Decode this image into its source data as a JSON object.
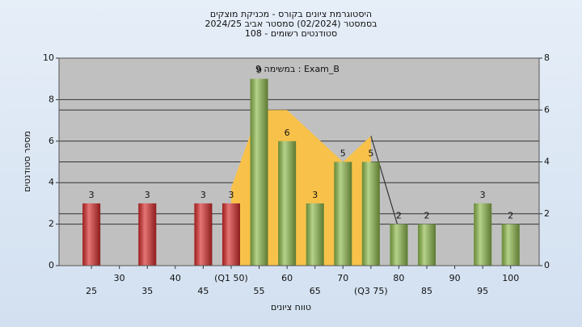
{
  "chart_data": {
    "type": "bar",
    "title": [
      "היסטוגרמת ציונים בקורס - מכניקת מוצקים",
      "בסמסטר (02/2024) סמסטר אביב 2024/25",
      "סטודנטים רשומים - 108"
    ],
    "annotation": "Exam_B : במשימה 9",
    "x_label": "טווח ציונים",
    "y_label": "מספר סטודנטים",
    "xlim": [
      19.2,
      105.1
    ],
    "xticks": [
      25,
      30,
      35,
      40,
      45,
      {
        "value": 50,
        "label": "(Q1 50)"
      },
      55,
      60,
      65,
      70,
      {
        "value": 75,
        "label": "(Q3 75)"
      },
      80,
      85,
      90,
      95,
      100
    ],
    "ylim": [
      0,
      10
    ],
    "yticks": [
      0,
      2,
      4,
      6,
      8,
      10
    ],
    "y2lim": [
      0,
      8
    ],
    "y2ticks": [
      0,
      2,
      4,
      6,
      8
    ],
    "grid": true,
    "series": [
      {
        "type": "area",
        "axis": "y2",
        "color": "#f8c24a",
        "x": [
          50,
          55,
          60,
          65,
          70,
          75
        ],
        "values": [
          3,
          6,
          6,
          5,
          4,
          5
        ]
      },
      {
        "type": "line",
        "axis": "y2",
        "color": "#333333",
        "x": [
          75,
          80
        ],
        "values": [
          5,
          1.4
        ]
      },
      {
        "type": "bar",
        "color": "#d82c2c",
        "x": [
          25,
          35,
          45,
          50
        ],
        "values": [
          3,
          3,
          3,
          3
        ]
      },
      {
        "type": "bar",
        "color": "#8fbb4c",
        "x": [
          55,
          60,
          65,
          70,
          75,
          80,
          85,
          95,
          100
        ],
        "values": [
          9,
          6,
          3,
          5,
          5,
          2,
          2,
          3,
          2
        ]
      }
    ]
  }
}
